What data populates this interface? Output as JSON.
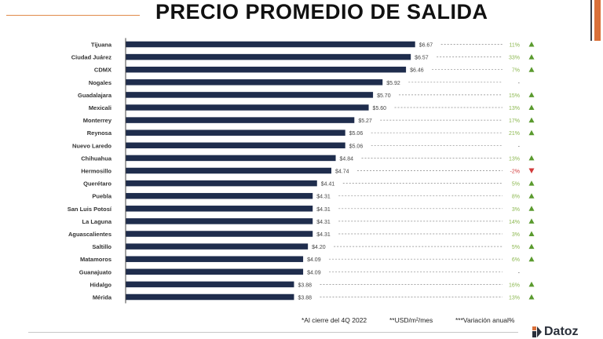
{
  "title": "PRECIO PROMEDIO DE SALIDA",
  "footnotes": {
    "period": "*Al cierre del 4Q 2022",
    "unit": "**USD/m²/mes",
    "variation": "***Variación anual%"
  },
  "logo": {
    "text": "Datoz"
  },
  "colors": {
    "bar": "#1f2d4d",
    "up": "#5a9a2e",
    "down": "#d23a3a",
    "pct": "#8cb850",
    "pct_negative": "#d23a3a",
    "accent": "#d9703a"
  },
  "chart_data": {
    "type": "bar",
    "orientation": "horizontal",
    "xlim": [
      0,
      7.2
    ],
    "categories": [
      "Tijuana",
      "Ciudad Juárez",
      "CDMX",
      "Nogales",
      "Guadalajara",
      "Mexicali",
      "Monterrey",
      "Reynosa",
      "Nuevo Laredo",
      "Chihuahua",
      "Hermosillo",
      "Querétaro",
      "Puebla",
      "San Luis Potosí",
      "La Laguna",
      "Aguascalientes",
      "Saltillo",
      "Matamoros",
      "Guanajuato",
      "Hidalgo",
      "Mérida"
    ],
    "values": [
      6.67,
      6.57,
      6.46,
      5.92,
      5.7,
      5.6,
      5.27,
      5.06,
      5.06,
      4.84,
      4.74,
      4.41,
      4.31,
      4.31,
      4.31,
      4.31,
      4.2,
      4.09,
      4.09,
      3.88,
      3.88
    ],
    "value_labels": [
      "$6.67",
      "$6.57",
      "$6.46",
      "$5.92",
      "$5.70",
      "$5.60",
      "$5.27",
      "$5.06",
      "$5.06",
      "$4.84",
      "$4.74",
      "$4.41",
      "$4.31",
      "$4.31",
      "$4.31",
      "$4.31",
      "$4.20",
      "$4.09",
      "$4.09",
      "$3.88",
      "$3.88"
    ],
    "variation_labels": [
      "11%",
      "33%",
      "7%",
      "-",
      "15%",
      "13%",
      "17%",
      "21%",
      "-",
      "13%",
      "-2%",
      "5%",
      "8%",
      "3%",
      "14%",
      "3%",
      "5%",
      "6%",
      "-",
      "16%",
      "13%"
    ],
    "variation_direction": [
      "up",
      "up",
      "up",
      "none",
      "up",
      "up",
      "up",
      "up",
      "none",
      "up",
      "down",
      "up",
      "up",
      "up",
      "up",
      "up",
      "up",
      "up",
      "none",
      "up",
      "up"
    ]
  }
}
